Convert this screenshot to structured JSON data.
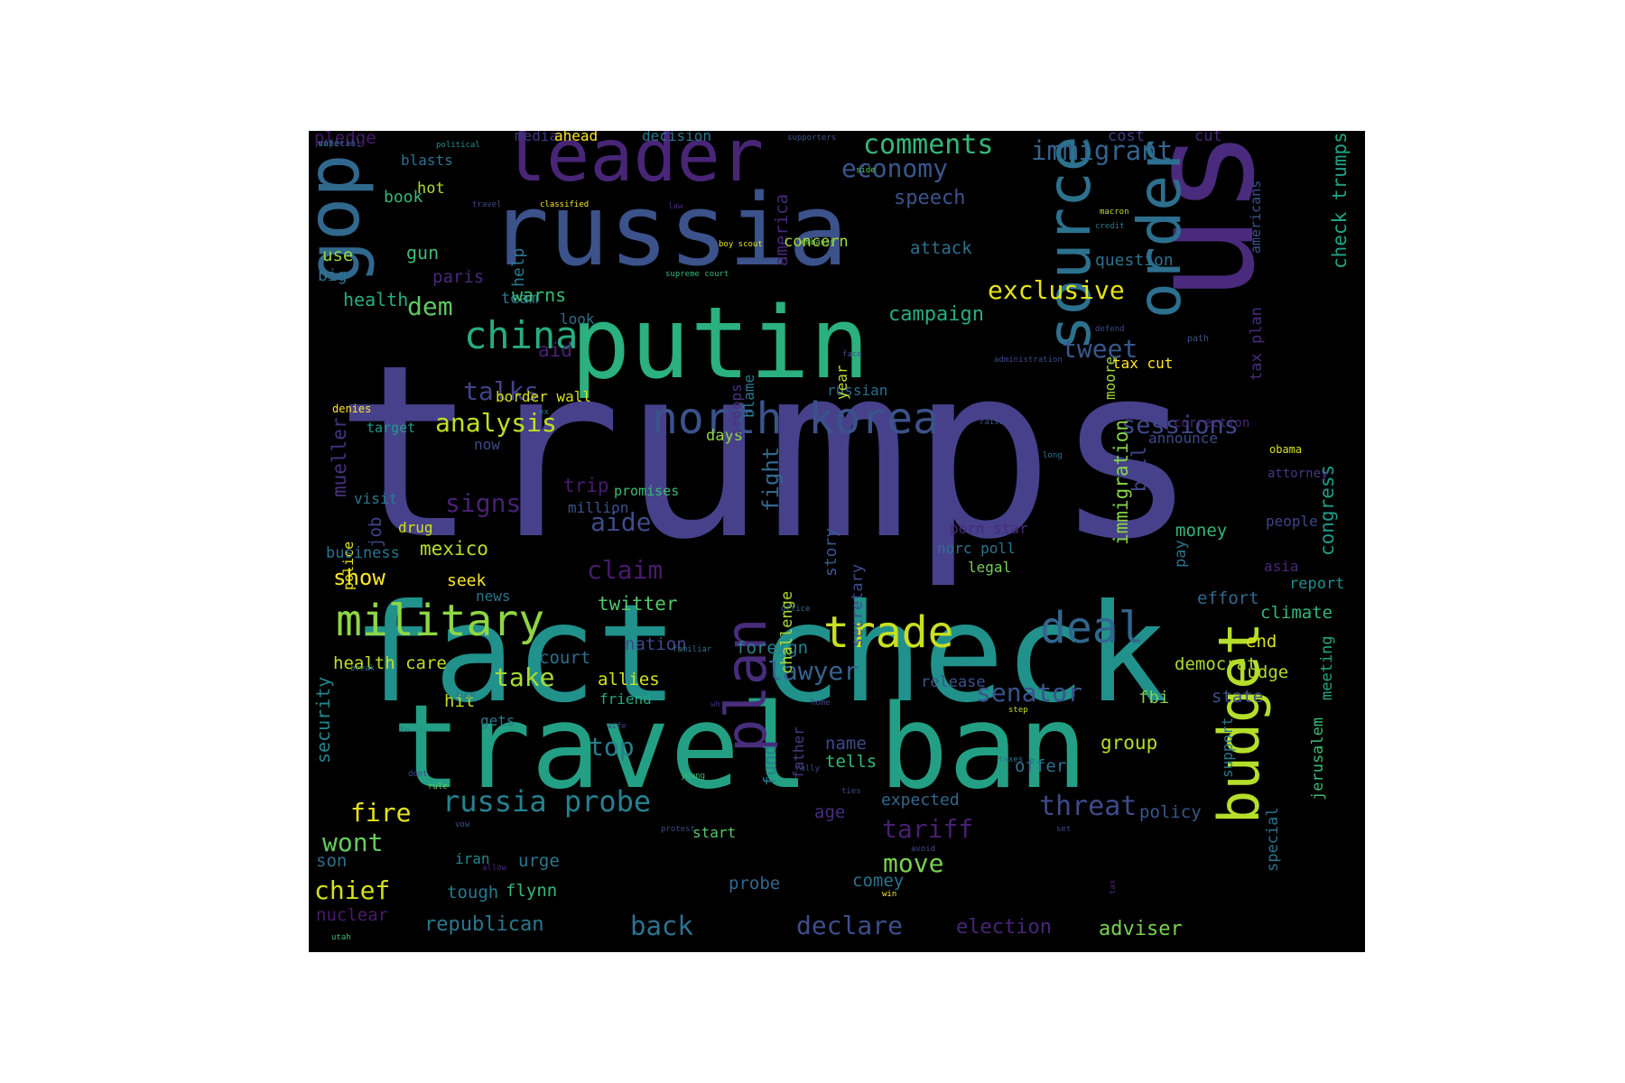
{
  "cloud": {
    "background": "#000000",
    "palette": [
      "#440154",
      "#472c7a",
      "#3b528b",
      "#2c728e",
      "#21918c",
      "#28ae80",
      "#5ec962",
      "#addc30",
      "#fde725"
    ],
    "words": [
      {
        "text": "trumps",
        "color": "#46418a"
      },
      {
        "text": "fact check",
        "color": "#21918c"
      },
      {
        "text": "travel ban",
        "color": "#23a084"
      },
      {
        "text": "us",
        "color": "#4a2a7c"
      },
      {
        "text": "russia",
        "color": "#3b528b"
      },
      {
        "text": "putin",
        "color": "#2bb07f"
      },
      {
        "text": "gop",
        "color": "#31688e"
      },
      {
        "text": "leader",
        "color": "#482576"
      },
      {
        "text": "source",
        "color": "#2c728e"
      },
      {
        "text": "order",
        "color": "#2d6f8e"
      },
      {
        "text": "budget",
        "color": "#b5de2b"
      },
      {
        "text": "plan",
        "color": "#472d7b"
      },
      {
        "text": "north korea",
        "color": "#3b528b"
      },
      {
        "text": "military",
        "color": "#8ed645"
      },
      {
        "text": "trade",
        "color": "#c8e020"
      },
      {
        "text": "deal",
        "color": "#31668e"
      },
      {
        "text": "china",
        "color": "#27ad81"
      },
      {
        "text": "comments",
        "color": "#35b779"
      },
      {
        "text": "economy",
        "color": "#39568c"
      },
      {
        "text": "immigrant",
        "color": "#33638d"
      },
      {
        "text": "exclusive",
        "color": "#e3e418"
      },
      {
        "text": "analysis",
        "color": "#c2df23"
      },
      {
        "text": "sessions",
        "color": "#3e4989"
      },
      {
        "text": "russia probe",
        "color": "#26818e"
      },
      {
        "text": "threat",
        "color": "#3e4a89"
      },
      {
        "text": "senator",
        "color": "#3b528b"
      },
      {
        "text": "tariff",
        "color": "#481f70"
      },
      {
        "text": "declare",
        "color": "#3d4e8a"
      },
      {
        "text": "back",
        "color": "#2c728e"
      },
      {
        "text": "chief",
        "color": "#d0e11c"
      },
      {
        "text": "wont",
        "color": "#65cb5e"
      },
      {
        "text": "fire",
        "color": "#e5e419"
      },
      {
        "text": "move",
        "color": "#7ad151"
      },
      {
        "text": "lawyer",
        "color": "#33638d"
      },
      {
        "text": "take",
        "color": "#a8db34"
      },
      {
        "text": "top",
        "color": "#287d8e"
      },
      {
        "text": "claim",
        "color": "#481b6d"
      },
      {
        "text": "aide",
        "color": "#3e4c8a"
      },
      {
        "text": "signs",
        "color": "#482173"
      },
      {
        "text": "talks",
        "color": "#414487"
      },
      {
        "text": "dem",
        "color": "#5ec962"
      },
      {
        "text": "tweet",
        "color": "#38588c"
      },
      {
        "text": "speech",
        "color": "#3b528b"
      },
      {
        "text": "campaign",
        "color": "#27ad81"
      },
      {
        "text": "fight",
        "color": "#31688e"
      },
      {
        "text": "immigration",
        "color": "#86d549"
      },
      {
        "text": "bill",
        "color": "#3f4788"
      },
      {
        "text": "congress",
        "color": "#1f9e89"
      },
      {
        "text": "check trumps",
        "color": "#20a486"
      },
      {
        "text": "mueller",
        "color": "#46337e"
      },
      {
        "text": "show",
        "color": "#fde725"
      },
      {
        "text": "twitter",
        "color": "#52c569"
      },
      {
        "text": "court",
        "color": "#2e6e8e"
      },
      {
        "text": "security",
        "color": "#25858e"
      },
      {
        "text": "health care",
        "color": "#c0df25"
      },
      {
        "text": "group",
        "color": "#b8de29"
      },
      {
        "text": "name",
        "color": "#3e4a89"
      },
      {
        "text": "tells",
        "color": "#35b779"
      },
      {
        "text": "republican",
        "color": "#2a788e"
      },
      {
        "text": "election",
        "color": "#482576"
      },
      {
        "text": "adviser",
        "color": "#7ad151"
      },
      {
        "text": "judge",
        "color": "#b2dd2d"
      },
      {
        "text": "climate",
        "color": "#32b67a"
      },
      {
        "text": "end",
        "color": "#d8e219"
      },
      {
        "text": "effort",
        "color": "#31688e"
      },
      {
        "text": "report",
        "color": "#218f8d"
      },
      {
        "text": "democrat",
        "color": "#addc30"
      },
      {
        "text": "fbi",
        "color": "#7ad151"
      },
      {
        "text": "state",
        "color": "#3b528b"
      },
      {
        "text": "meeting",
        "color": "#22a785"
      },
      {
        "text": "jerusalem",
        "color": "#3dbc74"
      },
      {
        "text": "special",
        "color": "#2d718e"
      },
      {
        "text": "support",
        "color": "#2a788e"
      },
      {
        "text": "policy",
        "color": "#39568c"
      },
      {
        "text": "offer",
        "color": "#2e6f8e"
      },
      {
        "text": "expected",
        "color": "#31688e"
      },
      {
        "text": "age",
        "color": "#472d7b"
      },
      {
        "text": "comey",
        "color": "#2b748e"
      },
      {
        "text": "probe",
        "color": "#31688e"
      },
      {
        "text": "urge",
        "color": "#2a788e"
      },
      {
        "text": "flynn",
        "color": "#35b779"
      },
      {
        "text": "tough",
        "color": "#2a788e"
      },
      {
        "text": "iran",
        "color": "#24878e"
      },
      {
        "text": "son",
        "color": "#2e6e8e"
      },
      {
        "text": "nuclear",
        "color": "#481a6c"
      },
      {
        "text": "foreign",
        "color": "#26818e"
      },
      {
        "text": "allies",
        "color": "#d2e21b"
      },
      {
        "text": "friend",
        "color": "#22a884"
      },
      {
        "text": "nation",
        "color": "#3e4a89"
      },
      {
        "text": "hit",
        "color": "#b8de29"
      },
      {
        "text": "gets",
        "color": "#2a788e"
      },
      {
        "text": "release",
        "color": "#3b528b"
      },
      {
        "text": "story",
        "color": "#38588c"
      },
      {
        "text": "challenge",
        "color": "#addc30"
      },
      {
        "text": "secretary",
        "color": "#3e4c8a"
      },
      {
        "text": "porn star",
        "color": "#482979"
      },
      {
        "text": "norc poll",
        "color": "#2c728e"
      },
      {
        "text": "legal",
        "color": "#73d056"
      },
      {
        "text": "money",
        "color": "#35b779"
      },
      {
        "text": "pay",
        "color": "#2d718e"
      },
      {
        "text": "people",
        "color": "#414487"
      },
      {
        "text": "asia",
        "color": "#482878"
      },
      {
        "text": "announce",
        "color": "#3e4989"
      },
      {
        "text": "moore",
        "color": "#a0da39"
      },
      {
        "text": "tax cut",
        "color": "#fde725"
      },
      {
        "text": "tax plan",
        "color": "#472d7b"
      },
      {
        "text": "americans",
        "color": "#3b528b"
      },
      {
        "text": "correction",
        "color": "#482576"
      },
      {
        "text": "attorney",
        "color": "#453882"
      },
      {
        "text": "obama",
        "color": "#d8e219"
      },
      {
        "text": "police",
        "color": "#e7e419"
      },
      {
        "text": "job",
        "color": "#414487"
      },
      {
        "text": "business",
        "color": "#2c728e"
      },
      {
        "text": "drug",
        "color": "#d0e11c"
      },
      {
        "text": "mexico",
        "color": "#bade28"
      },
      {
        "text": "promises",
        "color": "#3dbc74"
      },
      {
        "text": "trip",
        "color": "#481b6d"
      },
      {
        "text": "million",
        "color": "#3b528b"
      },
      {
        "text": "seek",
        "color": "#fde725"
      },
      {
        "text": "news",
        "color": "#2c728e"
      },
      {
        "text": "visit",
        "color": "#2a788e"
      },
      {
        "text": "target",
        "color": "#1f9a8a"
      },
      {
        "text": "denies",
        "color": "#fde725"
      },
      {
        "text": "now",
        "color": "#3e4989"
      },
      {
        "text": "border wall",
        "color": "#d8e219"
      },
      {
        "text": "aid",
        "color": "#482173"
      },
      {
        "text": "russian",
        "color": "#2e6e8e"
      },
      {
        "text": "year",
        "color": "#bade28"
      },
      {
        "text": "days",
        "color": "#8fd744"
      },
      {
        "text": "troops",
        "color": "#46327e"
      },
      {
        "text": "blame",
        "color": "#2a788e"
      },
      {
        "text": "look",
        "color": "#2e6e8e"
      },
      {
        "text": "team",
        "color": "#2a788e"
      },
      {
        "text": "warns",
        "color": "#3dbc74"
      },
      {
        "text": "help",
        "color": "#2a788e"
      },
      {
        "text": "paris",
        "color": "#482979"
      },
      {
        "text": "gun",
        "color": "#3dbc74"
      },
      {
        "text": "use",
        "color": "#95d840"
      },
      {
        "text": "big",
        "color": "#2c728e"
      },
      {
        "text": "health",
        "color": "#28ae80"
      },
      {
        "text": "book",
        "color": "#35b779"
      },
      {
        "text": "hot",
        "color": "#addc30"
      },
      {
        "text": "blasts",
        "color": "#2c728e"
      },
      {
        "text": "pledge",
        "color": "#481a6c"
      },
      {
        "text": "media",
        "color": "#443983"
      },
      {
        "text": "ahead",
        "color": "#fde725"
      },
      {
        "text": "decision",
        "color": "#2a788e"
      },
      {
        "text": "america",
        "color": "#482878"
      },
      {
        "text": "concern",
        "color": "#a5db36"
      },
      {
        "text": "attack",
        "color": "#2d718e"
      },
      {
        "text": "question",
        "color": "#2c728e"
      },
      {
        "text": "cost",
        "color": "#433e85"
      },
      {
        "text": "cut",
        "color": "#482878"
      },
      {
        "text": "fund",
        "color": "#2a788e"
      },
      {
        "text": "father",
        "color": "#443983"
      },
      {
        "text": "start",
        "color": "#56c667"
      },
      {
        "text": "political",
        "color": "#21918c"
      },
      {
        "text": "supporters",
        "color": "#3b528b"
      },
      {
        "text": "side",
        "color": "#5ec962"
      },
      {
        "text": "travel",
        "color": "#3e4a89"
      },
      {
        "text": "classified",
        "color": "#fde725"
      },
      {
        "text": "law",
        "color": "#472c7a"
      },
      {
        "text": "boy scout",
        "color": "#e5e419"
      },
      {
        "text": "embassy",
        "color": "#7ad151"
      },
      {
        "text": "supreme court",
        "color": "#35b779"
      },
      {
        "text": "macron",
        "color": "#c2df23"
      },
      {
        "text": "credit",
        "color": "#2a788e"
      },
      {
        "text": "defend",
        "color": "#3e4989"
      },
      {
        "text": "path",
        "color": "#3b528b"
      },
      {
        "text": "face",
        "color": "#3e4c8a"
      },
      {
        "text": "administration",
        "color": "#3e4989"
      },
      {
        "text": "ex",
        "color": "#2a788e"
      },
      {
        "text": "raise",
        "color": "#3b528b"
      },
      {
        "text": "long",
        "color": "#2c728e"
      },
      {
        "text": "office",
        "color": "#2c728e"
      },
      {
        "text": "familiar",
        "color": "#2c728e"
      },
      {
        "text": "break",
        "color": "#2a788e"
      },
      {
        "text": "huge",
        "color": "#2c728e"
      },
      {
        "text": "wh",
        "color": "#472c7a"
      },
      {
        "text": "home",
        "color": "#3e4989"
      },
      {
        "text": "step",
        "color": "#c2df23"
      },
      {
        "text": "tv",
        "color": "#2c728e"
      },
      {
        "text": "wife",
        "color": "#3e4989"
      },
      {
        "text": "dont",
        "color": "#3e4989"
      },
      {
        "text": "rule",
        "color": "#6ccd5a"
      },
      {
        "text": "young",
        "color": "#3dbc74"
      },
      {
        "text": "rally",
        "color": "#3e4989"
      },
      {
        "text": "vow",
        "color": "#3b528b"
      },
      {
        "text": "protest",
        "color": "#3e4989"
      },
      {
        "text": "ties",
        "color": "#3e4989"
      },
      {
        "text": "taxes",
        "color": "#2c728e"
      },
      {
        "text": "set",
        "color": "#3e4989"
      },
      {
        "text": "allow",
        "color": "#482878"
      },
      {
        "text": "win",
        "color": "#fde725"
      },
      {
        "text": "avoid",
        "color": "#3e4989"
      },
      {
        "text": "utah",
        "color": "#3dbc74"
      },
      {
        "text": "tax",
        "color": "#482878"
      },
      {
        "text": "official",
        "color": "#3e4989"
      },
      {
        "text": "capital",
        "color": "#3e4989"
      },
      {
        "text": "vote",
        "color": "#2c728e"
      }
    ]
  }
}
